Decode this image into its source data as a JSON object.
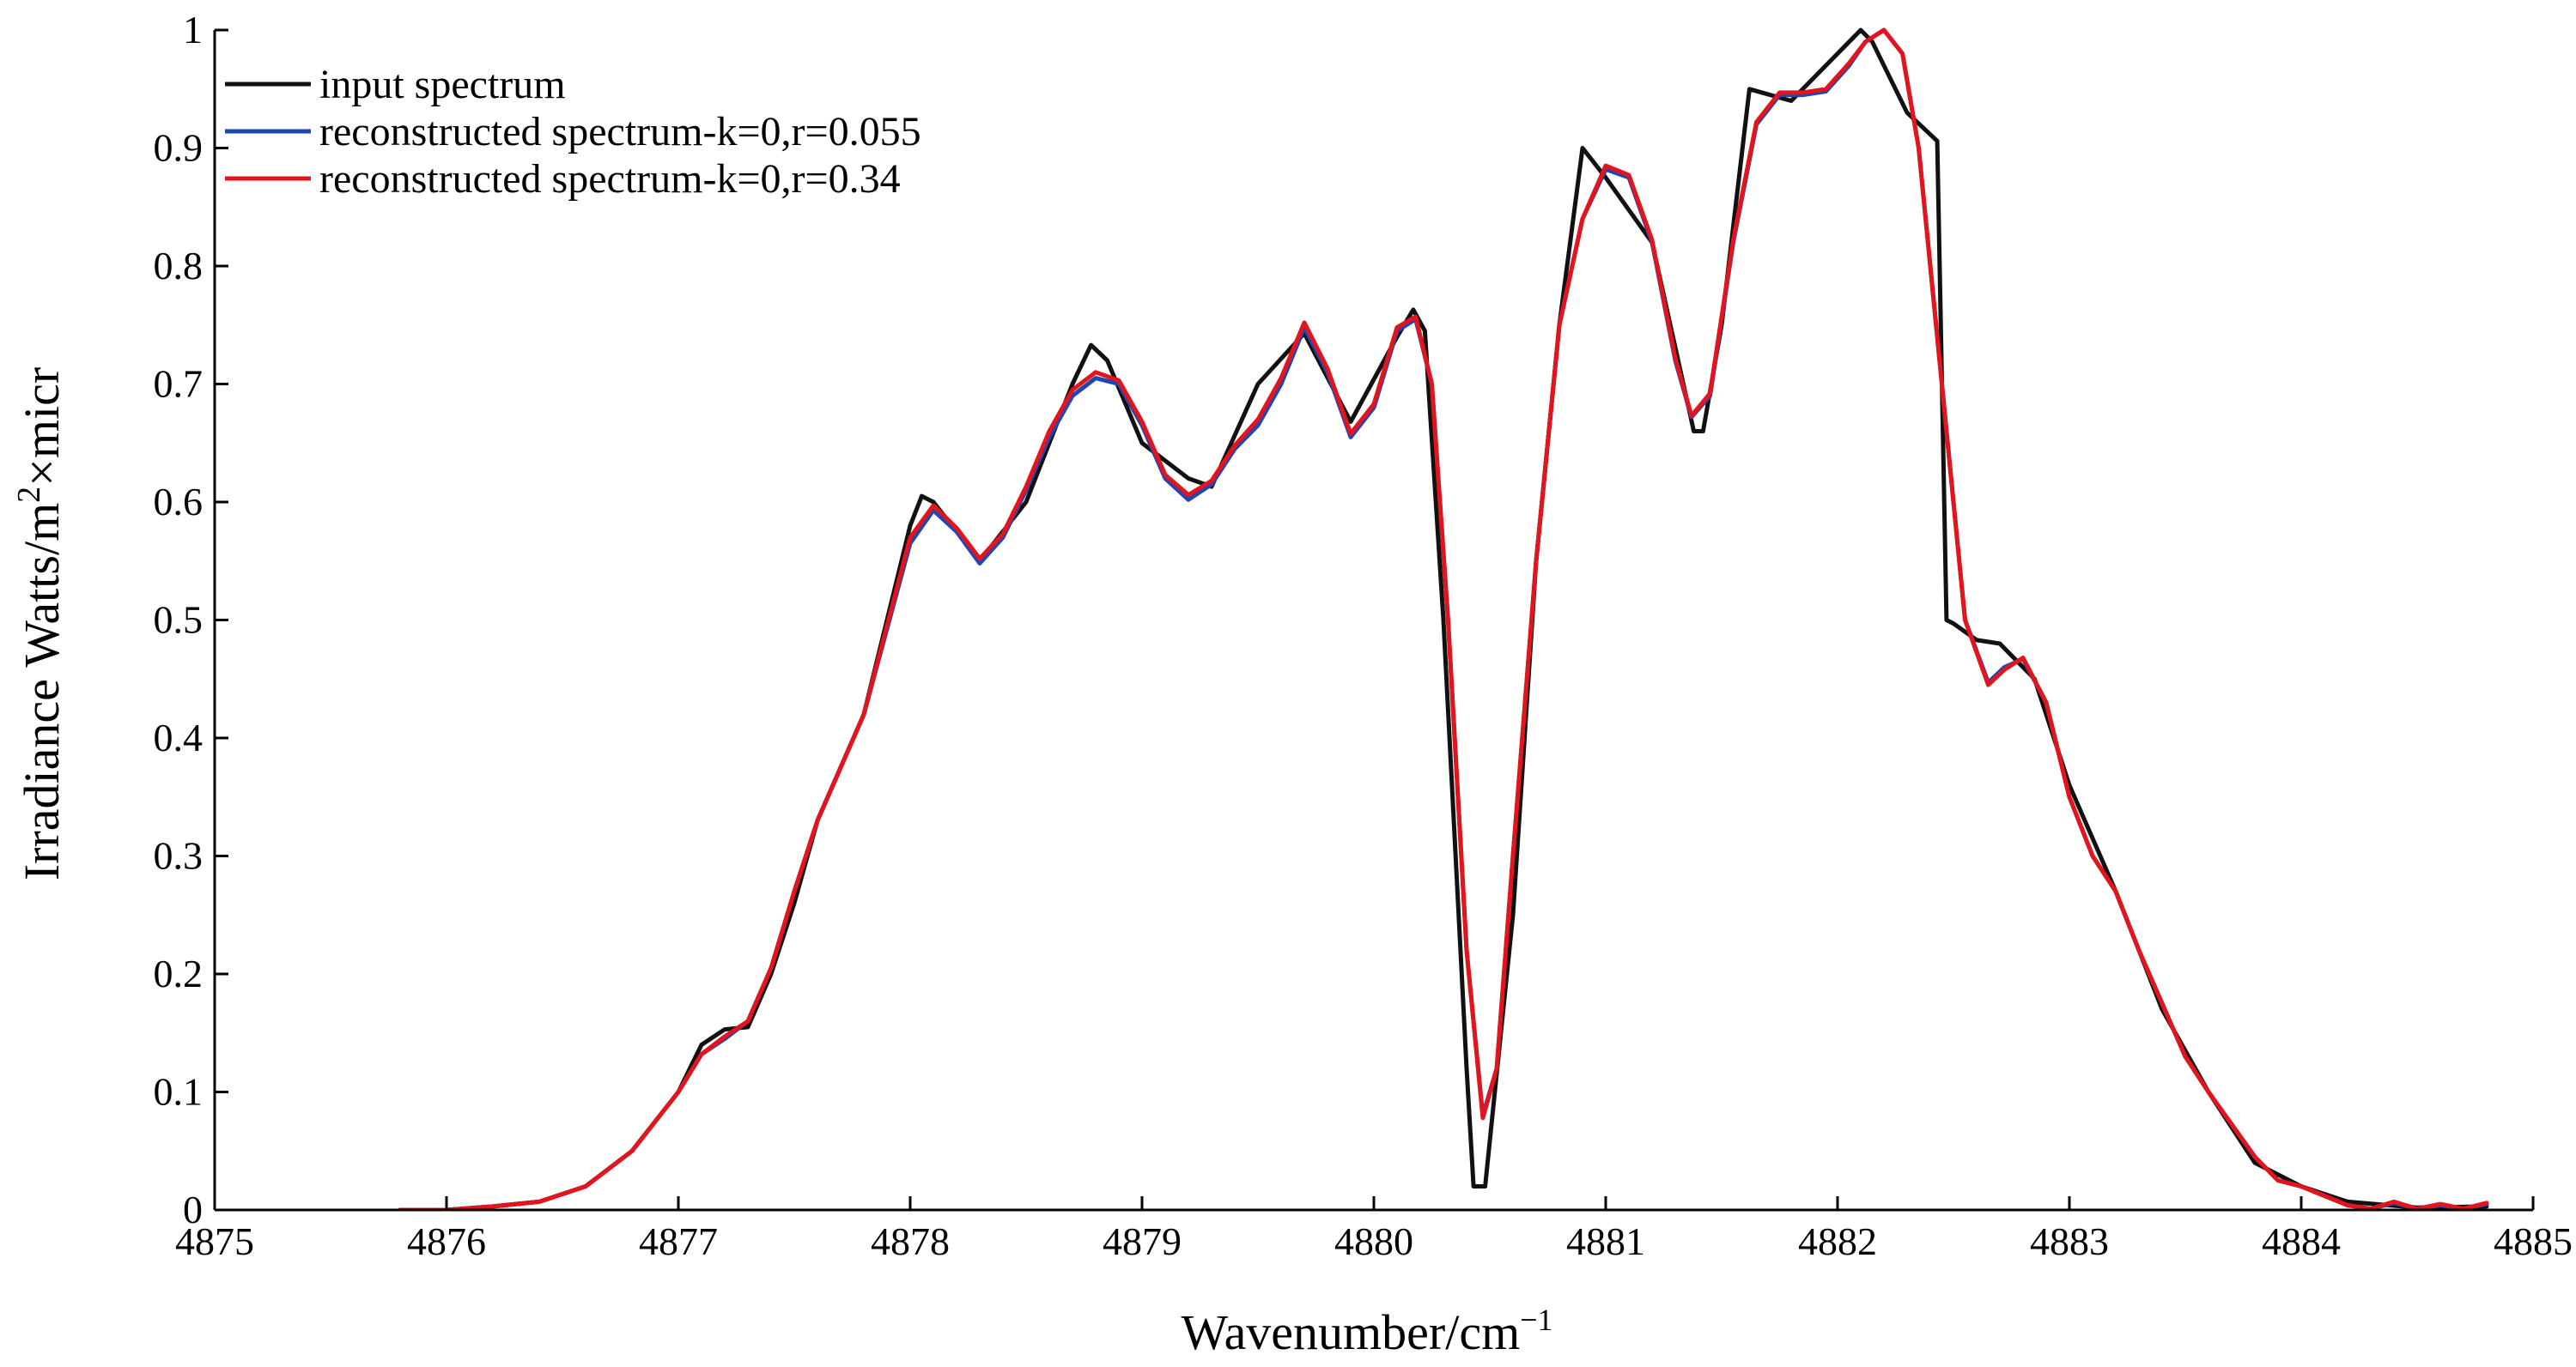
{
  "chart_data": {
    "type": "line",
    "title": "",
    "xlabel": "Wavenumber/cm",
    "xlabel_sup": "−1",
    "ylabel_prefix": "Irradiance Watts/m",
    "ylabel_sup": "2",
    "ylabel_suffix": "×micr",
    "xlim": [
      4875,
      4885
    ],
    "ylim": [
      0,
      1
    ],
    "xticks": [
      4875,
      4876,
      4877,
      4878,
      4879,
      4880,
      4881,
      4882,
      4883,
      4884,
      4885
    ],
    "yticks": [
      0,
      0.1,
      0.2,
      0.3,
      0.4,
      0.5,
      0.6,
      0.7,
      0.8,
      0.9,
      1
    ],
    "ytick_labels": [
      "0",
      "0.1",
      "0.2",
      "0.3",
      "0.4",
      "0.5",
      "0.6",
      "0.7",
      "0.8",
      "0.9",
      "1"
    ],
    "grid": false,
    "legend_position": "top-left",
    "series": [
      {
        "name": "input spectrum",
        "color": "#111111",
        "points": [
          [
            4875.8,
            0
          ],
          [
            4876.0,
            0
          ],
          [
            4876.2,
            0.003
          ],
          [
            4876.4,
            0.007
          ],
          [
            4876.6,
            0.02
          ],
          [
            4876.8,
            0.05
          ],
          [
            4877.0,
            0.1
          ],
          [
            4877.1,
            0.14
          ],
          [
            4877.2,
            0.153
          ],
          [
            4877.3,
            0.155
          ],
          [
            4877.4,
            0.2
          ],
          [
            4877.5,
            0.26
          ],
          [
            4877.6,
            0.33
          ],
          [
            4877.8,
            0.42
          ],
          [
            4878.0,
            0.58
          ],
          [
            4878.05,
            0.605
          ],
          [
            4878.1,
            0.6
          ],
          [
            4878.3,
            0.55
          ],
          [
            4878.5,
            0.6
          ],
          [
            4878.7,
            0.7
          ],
          [
            4878.78,
            0.733
          ],
          [
            4878.85,
            0.72
          ],
          [
            4879.0,
            0.65
          ],
          [
            4879.2,
            0.62
          ],
          [
            4879.3,
            0.613
          ],
          [
            4879.5,
            0.7
          ],
          [
            4879.7,
            0.743
          ],
          [
            4879.9,
            0.668
          ],
          [
            4880.1,
            0.74
          ],
          [
            4880.17,
            0.763
          ],
          [
            4880.22,
            0.745
          ],
          [
            4880.3,
            0.5
          ],
          [
            4880.4,
            0.12
          ],
          [
            4880.43,
            0.02
          ],
          [
            4880.48,
            0.02
          ],
          [
            4880.6,
            0.25
          ],
          [
            4880.7,
            0.55
          ],
          [
            4880.8,
            0.75
          ],
          [
            4880.9,
            0.9
          ],
          [
            4881.0,
            0.875
          ],
          [
            4881.2,
            0.82
          ],
          [
            4881.38,
            0.66
          ],
          [
            4881.42,
            0.66
          ],
          [
            4881.5,
            0.75
          ],
          [
            4881.62,
            0.95
          ],
          [
            4881.8,
            0.94
          ],
          [
            4882.0,
            0.98
          ],
          [
            4882.1,
            1.0
          ],
          [
            4882.15,
            0.99
          ],
          [
            4882.3,
            0.93
          ],
          [
            4882.43,
            0.906
          ],
          [
            4882.47,
            0.5
          ],
          [
            4882.5,
            0.497
          ],
          [
            4882.6,
            0.483
          ],
          [
            4882.7,
            0.48
          ],
          [
            4882.85,
            0.45
          ],
          [
            4883.0,
            0.36
          ],
          [
            4883.2,
            0.27
          ],
          [
            4883.4,
            0.17
          ],
          [
            4883.6,
            0.1
          ],
          [
            4883.8,
            0.04
          ],
          [
            4884.0,
            0.02
          ],
          [
            4884.2,
            0.007
          ],
          [
            4884.5,
            0.002
          ],
          [
            4884.8,
            0.003
          ]
        ]
      },
      {
        "name": "reconstructed spectrum-k=0,r=0.055",
        "color": "#2046b4",
        "points": [
          [
            4875.8,
            0
          ],
          [
            4876.0,
            0
          ],
          [
            4876.2,
            0.003
          ],
          [
            4876.4,
            0.007
          ],
          [
            4876.6,
            0.02
          ],
          [
            4876.8,
            0.05
          ],
          [
            4877.0,
            0.1
          ],
          [
            4877.1,
            0.132
          ],
          [
            4877.2,
            0.145
          ],
          [
            4877.3,
            0.16
          ],
          [
            4877.4,
            0.205
          ],
          [
            4877.5,
            0.27
          ],
          [
            4877.6,
            0.33
          ],
          [
            4877.8,
            0.42
          ],
          [
            4878.0,
            0.565
          ],
          [
            4878.1,
            0.593
          ],
          [
            4878.2,
            0.575
          ],
          [
            4878.3,
            0.548
          ],
          [
            4878.4,
            0.57
          ],
          [
            4878.5,
            0.61
          ],
          [
            4878.6,
            0.655
          ],
          [
            4878.7,
            0.69
          ],
          [
            4878.8,
            0.705
          ],
          [
            4878.9,
            0.7
          ],
          [
            4879.0,
            0.665
          ],
          [
            4879.1,
            0.62
          ],
          [
            4879.2,
            0.602
          ],
          [
            4879.3,
            0.615
          ],
          [
            4879.4,
            0.645
          ],
          [
            4879.5,
            0.665
          ],
          [
            4879.6,
            0.7
          ],
          [
            4879.7,
            0.748
          ],
          [
            4879.8,
            0.71
          ],
          [
            4879.9,
            0.655
          ],
          [
            4880.0,
            0.68
          ],
          [
            4880.1,
            0.745
          ],
          [
            4880.18,
            0.755
          ],
          [
            4880.25,
            0.7
          ],
          [
            4880.32,
            0.5
          ],
          [
            4880.4,
            0.22
          ],
          [
            4880.47,
            0.08
          ],
          [
            4880.53,
            0.12
          ],
          [
            4880.6,
            0.3
          ],
          [
            4880.7,
            0.55
          ],
          [
            4880.8,
            0.75
          ],
          [
            4880.9,
            0.84
          ],
          [
            4881.0,
            0.882
          ],
          [
            4881.1,
            0.875
          ],
          [
            4881.2,
            0.82
          ],
          [
            4881.3,
            0.72
          ],
          [
            4881.37,
            0.672
          ],
          [
            4881.45,
            0.69
          ],
          [
            4881.55,
            0.82
          ],
          [
            4881.65,
            0.92
          ],
          [
            4881.75,
            0.945
          ],
          [
            4881.85,
            0.945
          ],
          [
            4881.95,
            0.948
          ],
          [
            4882.05,
            0.97
          ],
          [
            4882.12,
            0.99
          ],
          [
            4882.2,
            1.0
          ],
          [
            4882.28,
            0.98
          ],
          [
            4882.35,
            0.9
          ],
          [
            4882.45,
            0.7
          ],
          [
            4882.55,
            0.5
          ],
          [
            4882.65,
            0.447
          ],
          [
            4882.72,
            0.46
          ],
          [
            4882.8,
            0.467
          ],
          [
            4882.9,
            0.43
          ],
          [
            4883.0,
            0.35
          ],
          [
            4883.1,
            0.3
          ],
          [
            4883.2,
            0.27
          ],
          [
            4883.3,
            0.22
          ],
          [
            4883.5,
            0.13
          ],
          [
            4883.6,
            0.1
          ],
          [
            4883.8,
            0.045
          ],
          [
            4883.9,
            0.025
          ],
          [
            4884.0,
            0.02
          ],
          [
            4884.1,
            0.012
          ],
          [
            4884.2,
            0.004
          ],
          [
            4884.3,
            0.001
          ],
          [
            4884.4,
            0.006
          ],
          [
            4884.5,
            0.001
          ],
          [
            4884.6,
            0.004
          ],
          [
            4884.7,
            0.001
          ],
          [
            4884.8,
            0.005
          ]
        ]
      },
      {
        "name": "reconstructed spectrum-k=0,r=0.34",
        "color": "#e3141b",
        "points": [
          [
            4875.8,
            0
          ],
          [
            4876.0,
            0
          ],
          [
            4876.2,
            0.003
          ],
          [
            4876.4,
            0.007
          ],
          [
            4876.6,
            0.02
          ],
          [
            4876.8,
            0.05
          ],
          [
            4877.0,
            0.1
          ],
          [
            4877.1,
            0.132
          ],
          [
            4877.2,
            0.147
          ],
          [
            4877.3,
            0.16
          ],
          [
            4877.4,
            0.205
          ],
          [
            4877.5,
            0.27
          ],
          [
            4877.6,
            0.33
          ],
          [
            4877.8,
            0.42
          ],
          [
            4878.0,
            0.57
          ],
          [
            4878.1,
            0.597
          ],
          [
            4878.2,
            0.578
          ],
          [
            4878.3,
            0.552
          ],
          [
            4878.4,
            0.573
          ],
          [
            4878.5,
            0.613
          ],
          [
            4878.6,
            0.66
          ],
          [
            4878.7,
            0.695
          ],
          [
            4878.8,
            0.71
          ],
          [
            4878.9,
            0.703
          ],
          [
            4879.0,
            0.668
          ],
          [
            4879.1,
            0.623
          ],
          [
            4879.2,
            0.606
          ],
          [
            4879.3,
            0.618
          ],
          [
            4879.4,
            0.648
          ],
          [
            4879.5,
            0.67
          ],
          [
            4879.6,
            0.705
          ],
          [
            4879.7,
            0.752
          ],
          [
            4879.8,
            0.713
          ],
          [
            4879.9,
            0.658
          ],
          [
            4880.0,
            0.683
          ],
          [
            4880.1,
            0.748
          ],
          [
            4880.18,
            0.757
          ],
          [
            4880.25,
            0.7
          ],
          [
            4880.32,
            0.5
          ],
          [
            4880.4,
            0.22
          ],
          [
            4880.47,
            0.078
          ],
          [
            4880.53,
            0.12
          ],
          [
            4880.6,
            0.3
          ],
          [
            4880.7,
            0.55
          ],
          [
            4880.8,
            0.75
          ],
          [
            4880.9,
            0.84
          ],
          [
            4881.0,
            0.885
          ],
          [
            4881.1,
            0.877
          ],
          [
            4881.2,
            0.822
          ],
          [
            4881.3,
            0.722
          ],
          [
            4881.37,
            0.673
          ],
          [
            4881.45,
            0.692
          ],
          [
            4881.55,
            0.822
          ],
          [
            4881.65,
            0.922
          ],
          [
            4881.75,
            0.947
          ],
          [
            4881.85,
            0.947
          ],
          [
            4881.95,
            0.95
          ],
          [
            4882.05,
            0.972
          ],
          [
            4882.12,
            0.99
          ],
          [
            4882.2,
            1.0
          ],
          [
            4882.28,
            0.98
          ],
          [
            4882.35,
            0.9
          ],
          [
            4882.45,
            0.7
          ],
          [
            4882.55,
            0.5
          ],
          [
            4882.65,
            0.445
          ],
          [
            4882.72,
            0.458
          ],
          [
            4882.8,
            0.468
          ],
          [
            4882.9,
            0.43
          ],
          [
            4883.0,
            0.35
          ],
          [
            4883.1,
            0.3
          ],
          [
            4883.2,
            0.27
          ],
          [
            4883.3,
            0.22
          ],
          [
            4883.5,
            0.13
          ],
          [
            4883.6,
            0.1
          ],
          [
            4883.8,
            0.045
          ],
          [
            4883.9,
            0.025
          ],
          [
            4884.0,
            0.02
          ],
          [
            4884.1,
            0.012
          ],
          [
            4884.2,
            0.004
          ],
          [
            4884.3,
            0.001
          ],
          [
            4884.4,
            0.007
          ],
          [
            4884.5,
            0.001
          ],
          [
            4884.6,
            0.005
          ],
          [
            4884.7,
            0.001
          ],
          [
            4884.8,
            0.006
          ]
        ]
      }
    ]
  }
}
